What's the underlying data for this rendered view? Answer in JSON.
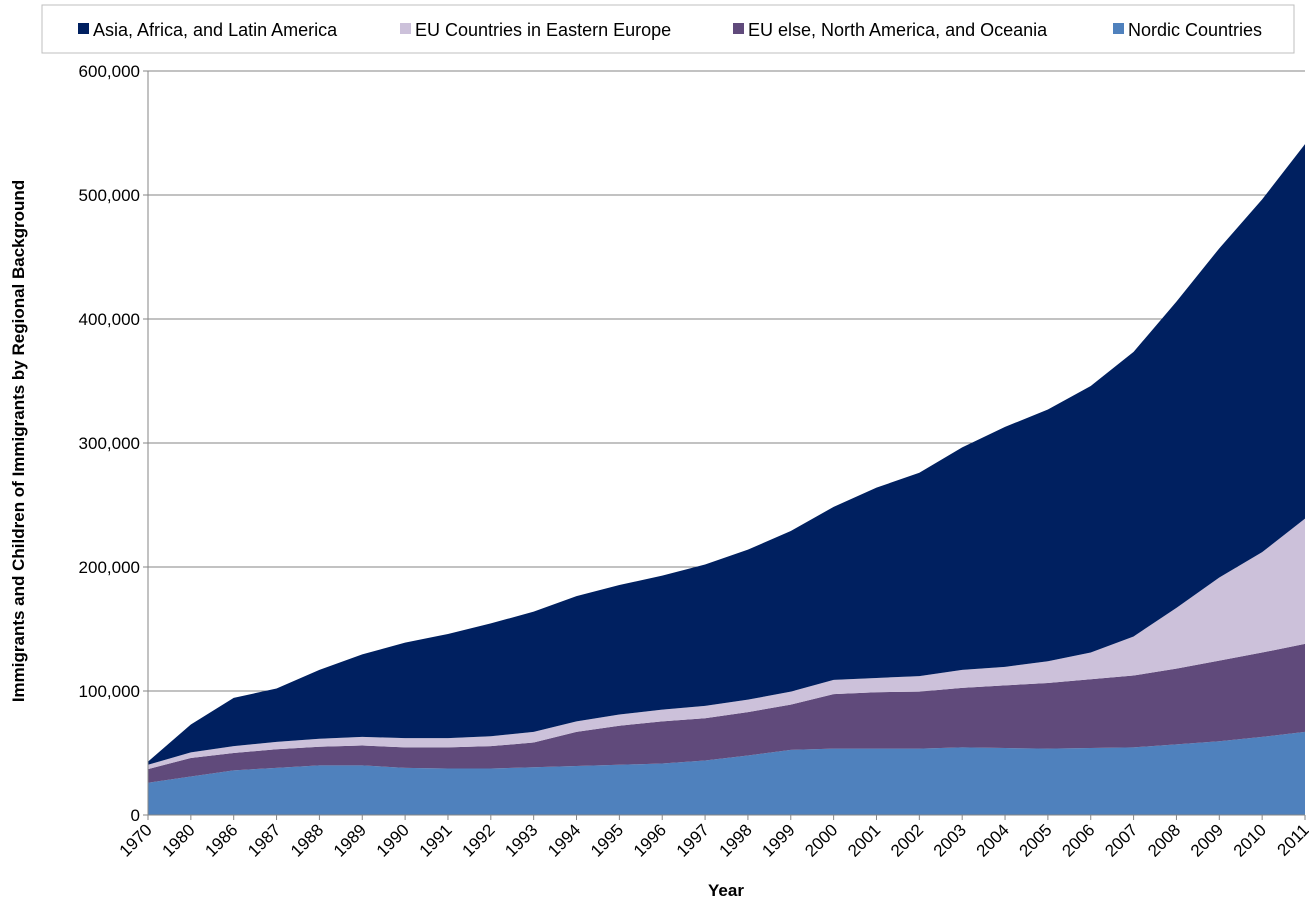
{
  "chart_data": {
    "type": "area",
    "stacked": true,
    "title": "",
    "xlabel": "Year",
    "ylabel": "Immigrants and Children of Immigrants by Regional Background",
    "ylim": [
      0,
      600000
    ],
    "yticks": [
      "0",
      "100,000",
      "200,000",
      "300,000",
      "400,000",
      "500,000",
      "600,000"
    ],
    "grid": "horizontal",
    "legend_position": "top",
    "categories": [
      "1970",
      "1980",
      "1986",
      "1987",
      "1988",
      "1989",
      "1990",
      "1991",
      "1992",
      "1993",
      "1994",
      "1995",
      "1996",
      "1997",
      "1998",
      "1999",
      "2000",
      "2001",
      "2002",
      "2003",
      "2004",
      "2005",
      "2006",
      "2007",
      "2008",
      "2009",
      "2010",
      "2011"
    ],
    "series": [
      {
        "name": "Nordic Countries",
        "color": "#4f81bd",
        "values": [
          26000,
          31000,
          36000,
          38000,
          40000,
          40000,
          38000,
          37500,
          37500,
          38500,
          39500,
          40500,
          41500,
          44000,
          48000,
          52500,
          53500,
          53500,
          53500,
          54500,
          54000,
          53500,
          54000,
          54500,
          57000,
          59500,
          63000,
          67000
        ]
      },
      {
        "name": "EU else, North America, and Oceania",
        "color": "#604a7b",
        "values": [
          11000,
          15000,
          14000,
          15000,
          15000,
          16000,
          16500,
          17000,
          18000,
          20000,
          27500,
          31500,
          34000,
          34000,
          35000,
          36500,
          44000,
          45500,
          46000,
          48000,
          50500,
          53000,
          55500,
          58000,
          61000,
          65000,
          68000,
          71000
        ]
      },
      {
        "name": "EU Countries in Eastern Europe",
        "color": "#ccc1da",
        "values": [
          3500,
          4500,
          5500,
          6000,
          6500,
          7000,
          7500,
          7500,
          8000,
          8500,
          8500,
          9000,
          9500,
          10000,
          10000,
          10500,
          11500,
          11500,
          12500,
          14500,
          15000,
          17500,
          21500,
          31500,
          49000,
          67000,
          81000,
          101000
        ]
      },
      {
        "name": "Asia, Africa, and Latin America",
        "color": "#002060",
        "values": [
          2500,
          22500,
          39000,
          43000,
          55500,
          66500,
          77000,
          84000,
          91000,
          97000,
          101000,
          104500,
          108000,
          114000,
          121000,
          129500,
          139500,
          153500,
          164000,
          179500,
          193500,
          203000,
          215000,
          229500,
          247000,
          265500,
          284500,
          302000
        ]
      }
    ]
  }
}
